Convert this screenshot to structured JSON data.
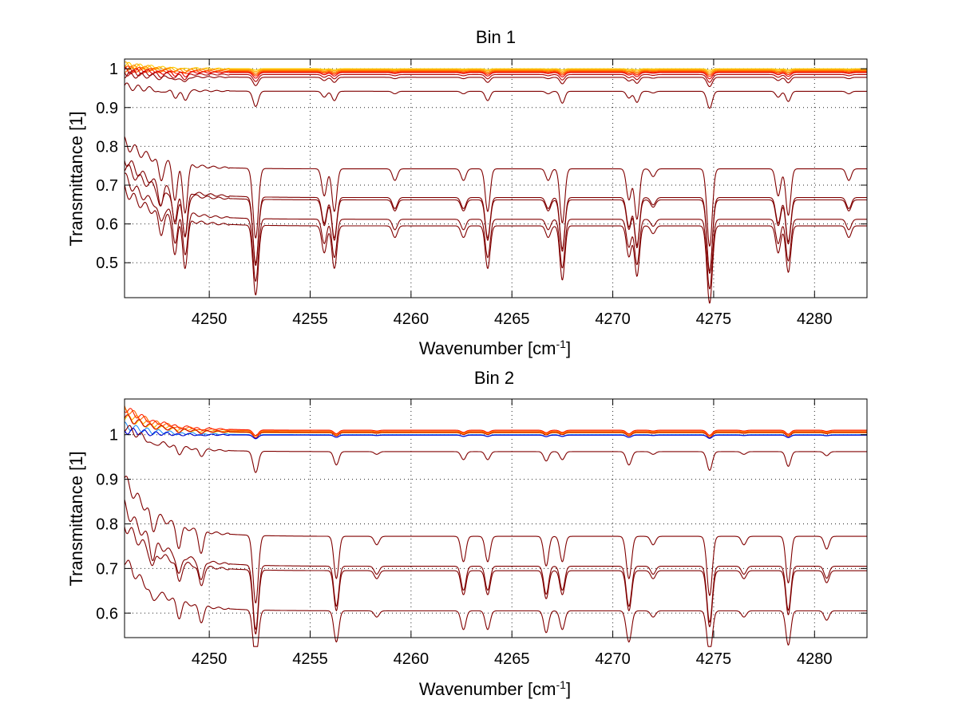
{
  "chart_data": [
    {
      "type": "line",
      "title": "Bin 1",
      "xlabel": "Wavenumber [cm",
      "xlabel_sup": "-1",
      "xlabel_end": "]",
      "ylabel": "Transmittance [1]",
      "xlim": [
        4245.8,
        4282.6
      ],
      "ylim": [
        0.41,
        1.025
      ],
      "xticks": [
        4250,
        4255,
        4260,
        4265,
        4270,
        4275,
        4280
      ],
      "yticks": [
        0.5,
        0.6,
        0.7,
        0.8,
        0.9,
        1
      ],
      "xtick_labels": [
        "4250",
        "4255",
        "4260",
        "4265",
        "4270",
        "4275",
        "4280"
      ],
      "ytick_labels": [
        "0.5",
        "0.6",
        "0.7",
        "0.8",
        "0.9",
        "1"
      ],
      "grid": true,
      "lines": [
        {
          "baseline": 1.0,
          "start": 1.01,
          "scale": 0.02,
          "color": "#ffcc00"
        },
        {
          "baseline": 0.998,
          "start": 1.01,
          "scale": 0.03,
          "color": "#ffb000"
        },
        {
          "baseline": 0.996,
          "start": 1.005,
          "scale": 0.04,
          "color": "#ff8c00"
        },
        {
          "baseline": 0.994,
          "start": 1.0,
          "scale": 0.05,
          "color": "#ff6600"
        },
        {
          "baseline": 0.992,
          "start": 1.0,
          "scale": 0.06,
          "color": "#ff3300"
        },
        {
          "baseline": 0.99,
          "start": 0.995,
          "scale": 0.08,
          "color": "#e60000"
        },
        {
          "baseline": 0.985,
          "start": 0.99,
          "scale": 0.1,
          "color": "#b30000"
        },
        {
          "baseline": 0.978,
          "start": 0.985,
          "scale": 0.12,
          "color": "#8b0000"
        },
        {
          "baseline": 0.942,
          "start": 0.955,
          "scale": 0.22,
          "color": "#800000"
        },
        {
          "baseline": 0.742,
          "start": 0.81,
          "scale": 1.0,
          "color": "#800000"
        },
        {
          "baseline": 0.668,
          "start": 0.77,
          "scale": 0.95,
          "color": "#800000"
        },
        {
          "baseline": 0.662,
          "start": 0.75,
          "scale": 0.95,
          "color": "#800000"
        },
        {
          "baseline": 0.612,
          "start": 0.72,
          "scale": 0.9,
          "color": "#800000"
        },
        {
          "baseline": 0.595,
          "start": 0.69,
          "scale": 1.0,
          "color": "#800000"
        }
      ],
      "absorption_lines": [
        {
          "center": 4247.6,
          "depth": 0.05,
          "width": 0.12
        },
        {
          "center": 4248.3,
          "depth": 0.09,
          "width": 0.12
        },
        {
          "center": 4248.8,
          "depth": 0.12,
          "width": 0.12
        },
        {
          "center": 4252.3,
          "depth": 0.18,
          "width": 0.13
        },
        {
          "center": 4255.7,
          "depth": 0.07,
          "width": 0.12
        },
        {
          "center": 4256.2,
          "depth": 0.11,
          "width": 0.12
        },
        {
          "center": 4259.2,
          "depth": 0.03,
          "width": 0.12
        },
        {
          "center": 4262.6,
          "depth": 0.03,
          "width": 0.12
        },
        {
          "center": 4263.8,
          "depth": 0.11,
          "width": 0.12
        },
        {
          "center": 4266.8,
          "depth": 0.03,
          "width": 0.12
        },
        {
          "center": 4267.5,
          "depth": 0.14,
          "width": 0.12
        },
        {
          "center": 4270.8,
          "depth": 0.08,
          "width": 0.12
        },
        {
          "center": 4271.2,
          "depth": 0.13,
          "width": 0.12
        },
        {
          "center": 4272.0,
          "depth": 0.02,
          "width": 0.12
        },
        {
          "center": 4274.8,
          "depth": 0.2,
          "width": 0.13
        },
        {
          "center": 4278.2,
          "depth": 0.07,
          "width": 0.12
        },
        {
          "center": 4278.7,
          "depth": 0.12,
          "width": 0.12
        },
        {
          "center": 4281.7,
          "depth": 0.03,
          "width": 0.12
        }
      ]
    },
    {
      "type": "line",
      "title": "Bin 2",
      "xlabel": "Wavenumber [cm",
      "xlabel_sup": "-1",
      "xlabel_end": "]",
      "ylabel": "Transmittance [1]",
      "xlim": [
        4245.8,
        4282.6
      ],
      "ylim": [
        0.545,
        1.08
      ],
      "xticks": [
        4250,
        4255,
        4260,
        4265,
        4270,
        4275,
        4280
      ],
      "yticks": [
        0.6,
        0.7,
        0.8,
        0.9,
        1
      ],
      "xtick_labels": [
        "4250",
        "4255",
        "4260",
        "4265",
        "4270",
        "4275",
        "4280"
      ],
      "ytick_labels": [
        "0.6",
        "0.7",
        "0.8",
        "0.9",
        "1"
      ],
      "grid": true,
      "lines": [
        {
          "baseline": 1.004,
          "start": 1.04,
          "scale": 0.05,
          "color": "#ffcc00"
        },
        {
          "baseline": 1.006,
          "start": 1.05,
          "scale": 0.06,
          "color": "#ffa500"
        },
        {
          "baseline": 1.008,
          "start": 1.06,
          "scale": 0.07,
          "color": "#ff6600"
        },
        {
          "baseline": 1.01,
          "start": 1.06,
          "scale": 0.08,
          "color": "#ff2000"
        },
        {
          "baseline": 1.005,
          "start": 1.04,
          "scale": 0.08,
          "color": "#cc0000"
        },
        {
          "baseline": 1.0,
          "start": 1.02,
          "scale": 0.06,
          "color": "#1e90ff"
        },
        {
          "baseline": 0.999,
          "start": 1.01,
          "scale": 0.05,
          "color": "#0000cd"
        },
        {
          "baseline": 0.962,
          "start": 1.02,
          "scale": 0.3,
          "color": "#800000"
        },
        {
          "baseline": 0.772,
          "start": 0.9,
          "scale": 0.95,
          "color": "#800000"
        },
        {
          "baseline": 0.705,
          "start": 0.84,
          "scale": 0.9,
          "color": "#800000"
        },
        {
          "baseline": 0.695,
          "start": 0.8,
          "scale": 0.9,
          "color": "#800000"
        },
        {
          "baseline": 0.605,
          "start": 0.72,
          "scale": 0.7,
          "color": "#800000"
        }
      ],
      "absorption_lines": [
        {
          "center": 4247.2,
          "depth": 0.04,
          "width": 0.12
        },
        {
          "center": 4248.5,
          "depth": 0.05,
          "width": 0.12
        },
        {
          "center": 4249.6,
          "depth": 0.05,
          "width": 0.12
        },
        {
          "center": 4252.3,
          "depth": 0.16,
          "width": 0.13
        },
        {
          "center": 4256.3,
          "depth": 0.1,
          "width": 0.12
        },
        {
          "center": 4258.3,
          "depth": 0.02,
          "width": 0.12
        },
        {
          "center": 4262.6,
          "depth": 0.06,
          "width": 0.12
        },
        {
          "center": 4263.8,
          "depth": 0.06,
          "width": 0.12
        },
        {
          "center": 4266.7,
          "depth": 0.07,
          "width": 0.12
        },
        {
          "center": 4267.5,
          "depth": 0.06,
          "width": 0.12
        },
        {
          "center": 4270.8,
          "depth": 0.1,
          "width": 0.13
        },
        {
          "center": 4272.0,
          "depth": 0.02,
          "width": 0.12
        },
        {
          "center": 4274.8,
          "depth": 0.14,
          "width": 0.13
        },
        {
          "center": 4276.5,
          "depth": 0.02,
          "width": 0.12
        },
        {
          "center": 4278.7,
          "depth": 0.11,
          "width": 0.12
        },
        {
          "center": 4280.6,
          "depth": 0.03,
          "width": 0.12
        }
      ]
    }
  ]
}
